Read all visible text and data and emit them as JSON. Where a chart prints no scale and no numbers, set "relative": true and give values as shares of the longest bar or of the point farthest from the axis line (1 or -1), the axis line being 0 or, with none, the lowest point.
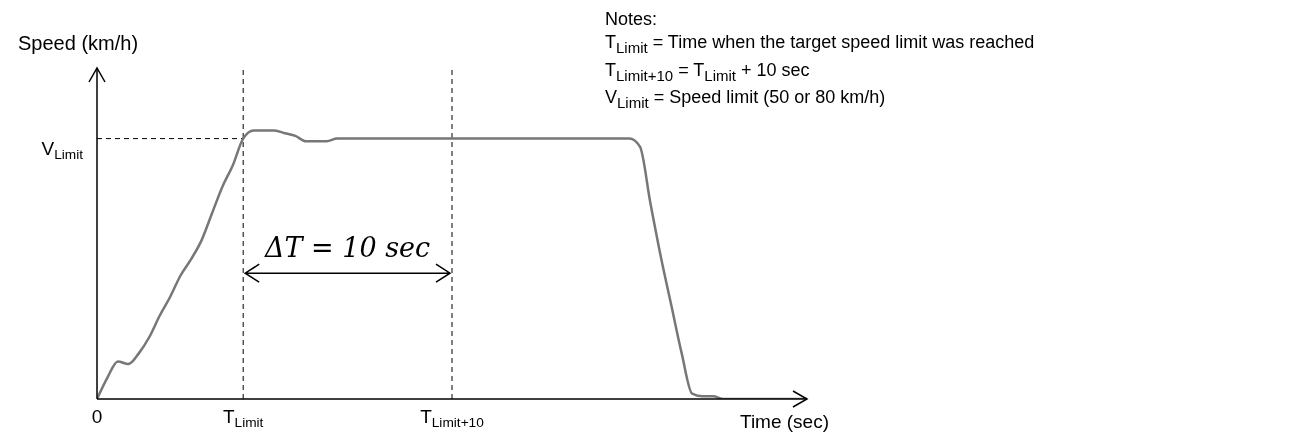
{
  "chart_data": {
    "type": "line",
    "relative": true,
    "xlabel": "Time (sec)",
    "ylabel": "Speed (km/h)",
    "categories": [
      "0",
      null,
      null,
      null,
      null,
      null,
      null,
      null,
      null,
      null,
      null,
      null,
      null,
      null,
      "T$_{Limit}$",
      null,
      null,
      null,
      null,
      null,
      null,
      null,
      null,
      null,
      null,
      null,
      null,
      null,
      null,
      null,
      null,
      null,
      null,
      null,
      "T$_{Limit+10}$",
      null,
      null,
      null,
      null,
      null,
      null,
      null,
      null,
      null,
      null,
      null,
      null,
      null,
      null,
      null,
      null,
      null,
      null,
      null,
      null,
      null,
      null,
      null,
      null,
      null,
      null,
      null,
      null,
      null,
      null,
      null,
      null,
      null,
      null
    ],
    "series": [
      {
        "color": "#777777",
        "values": [
          0,
          0.08,
          0.14,
          0.13,
          0.17,
          0.23,
          0.31,
          0.38,
          0.46,
          0.52,
          0.59,
          0.69,
          0.79,
          0.87,
          0.97,
          1,
          1,
          1,
          0.99,
          0.98,
          0.96,
          0.96,
          0.96,
          0.97,
          0.97,
          0.97,
          0.97,
          0.97,
          0.97,
          0.97,
          0.97,
          0.97,
          0.97,
          0.97,
          0.97,
          0.97,
          0.97,
          0.97,
          0.97,
          0.97,
          0.97,
          0.97,
          0.97,
          0.97,
          0.97,
          0.97,
          0.97,
          0.97,
          0.97,
          0.97,
          0.97,
          0.97,
          0.94,
          0.73,
          0.53,
          0.35,
          0.17,
          0.02,
          0.01,
          0.01,
          0,
          0,
          0,
          0,
          0,
          0,
          0,
          0,
          0
        ]
      }
    ],
    "ref_lines": [
      {
        "axis": "y",
        "value": 0.97,
        "label": "V$_{Limit}$",
        "line_style": "dashed",
        "color": "#000000"
      },
      {
        "axis": "x",
        "value": "T$_{Limit}$",
        "line_style": "dashed",
        "color": "#000000"
      },
      {
        "axis": "x",
        "value": "T$_{Limit+10}$",
        "line_style": "dashed",
        "color": "#000000"
      }
    ],
    "annotations": [
      "ΔT = 10 sec",
      "Notes:",
      "T$_{Limit}$ = Time when the target speed limit was reached",
      "T$_{Limit+10}$ = T$_{Limit}$ + 10 sec",
      "V$_{Limit}$ = Speed limit (50 or 80 km/h)"
    ],
    "grid": false,
    "marker": "none",
    "line_style": "solid"
  }
}
